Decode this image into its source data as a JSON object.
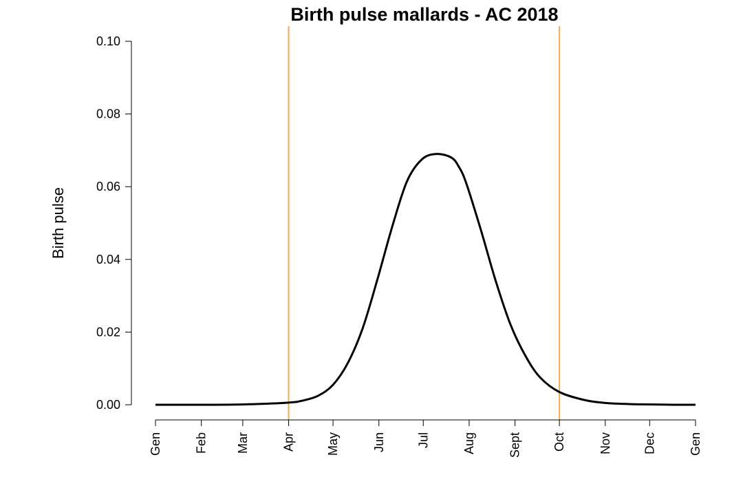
{
  "chart_data": {
    "type": "line",
    "title": "Birth pulse mallards - AC 2018",
    "xlabel": "",
    "ylabel": "Birth pulse",
    "x_unit": "day of year",
    "xlim": [
      0,
      365
    ],
    "ylim": [
      0,
      0.1
    ],
    "grid": false,
    "legend": "none",
    "x_ticks": [
      {
        "label": "Gen",
        "x": 0
      },
      {
        "label": "Feb",
        "x": 31
      },
      {
        "label": "Mar",
        "x": 59
      },
      {
        "label": "Apr",
        "x": 90
      },
      {
        "label": "May",
        "x": 120
      },
      {
        "label": "Jun",
        "x": 151
      },
      {
        "label": "Jul",
        "x": 181
      },
      {
        "label": "Aug",
        "x": 212
      },
      {
        "label": "Sept",
        "x": 243
      },
      {
        "label": "Oct",
        "x": 273
      },
      {
        "label": "Nov",
        "x": 304
      },
      {
        "label": "Dec",
        "x": 334
      },
      {
        "label": "Gen",
        "x": 365
      }
    ],
    "y_ticks": [
      {
        "label": "0.00",
        "y": 0.0
      },
      {
        "label": "0.02",
        "y": 0.02
      },
      {
        "label": "0.04",
        "y": 0.04
      },
      {
        "label": "0.06",
        "y": 0.06
      },
      {
        "label": "0.08",
        "y": 0.08
      },
      {
        "label": "0.10",
        "y": 0.1
      }
    ],
    "vertical_lines": [
      {
        "x": 90,
        "color": "#F4A94E"
      },
      {
        "x": 273,
        "color": "#F4A94E"
      }
    ],
    "series": [
      {
        "color": "#000000",
        "x": [
          0,
          31,
          59,
          90,
          100,
          110,
          120,
          130,
          140,
          150,
          160,
          170,
          180,
          190,
          200,
          205,
          210,
          220,
          230,
          240,
          250,
          260,
          273,
          290,
          304,
          320,
          334,
          350,
          365
        ],
        "y": [
          0.0,
          0.0,
          0.0001,
          0.0006,
          0.0012,
          0.0025,
          0.0055,
          0.0115,
          0.021,
          0.0345,
          0.049,
          0.0615,
          0.0675,
          0.069,
          0.068,
          0.0655,
          0.061,
          0.048,
          0.034,
          0.022,
          0.0135,
          0.0075,
          0.0035,
          0.0013,
          0.0005,
          0.0002,
          0.0001,
          0.0,
          0.0
        ]
      }
    ]
  }
}
